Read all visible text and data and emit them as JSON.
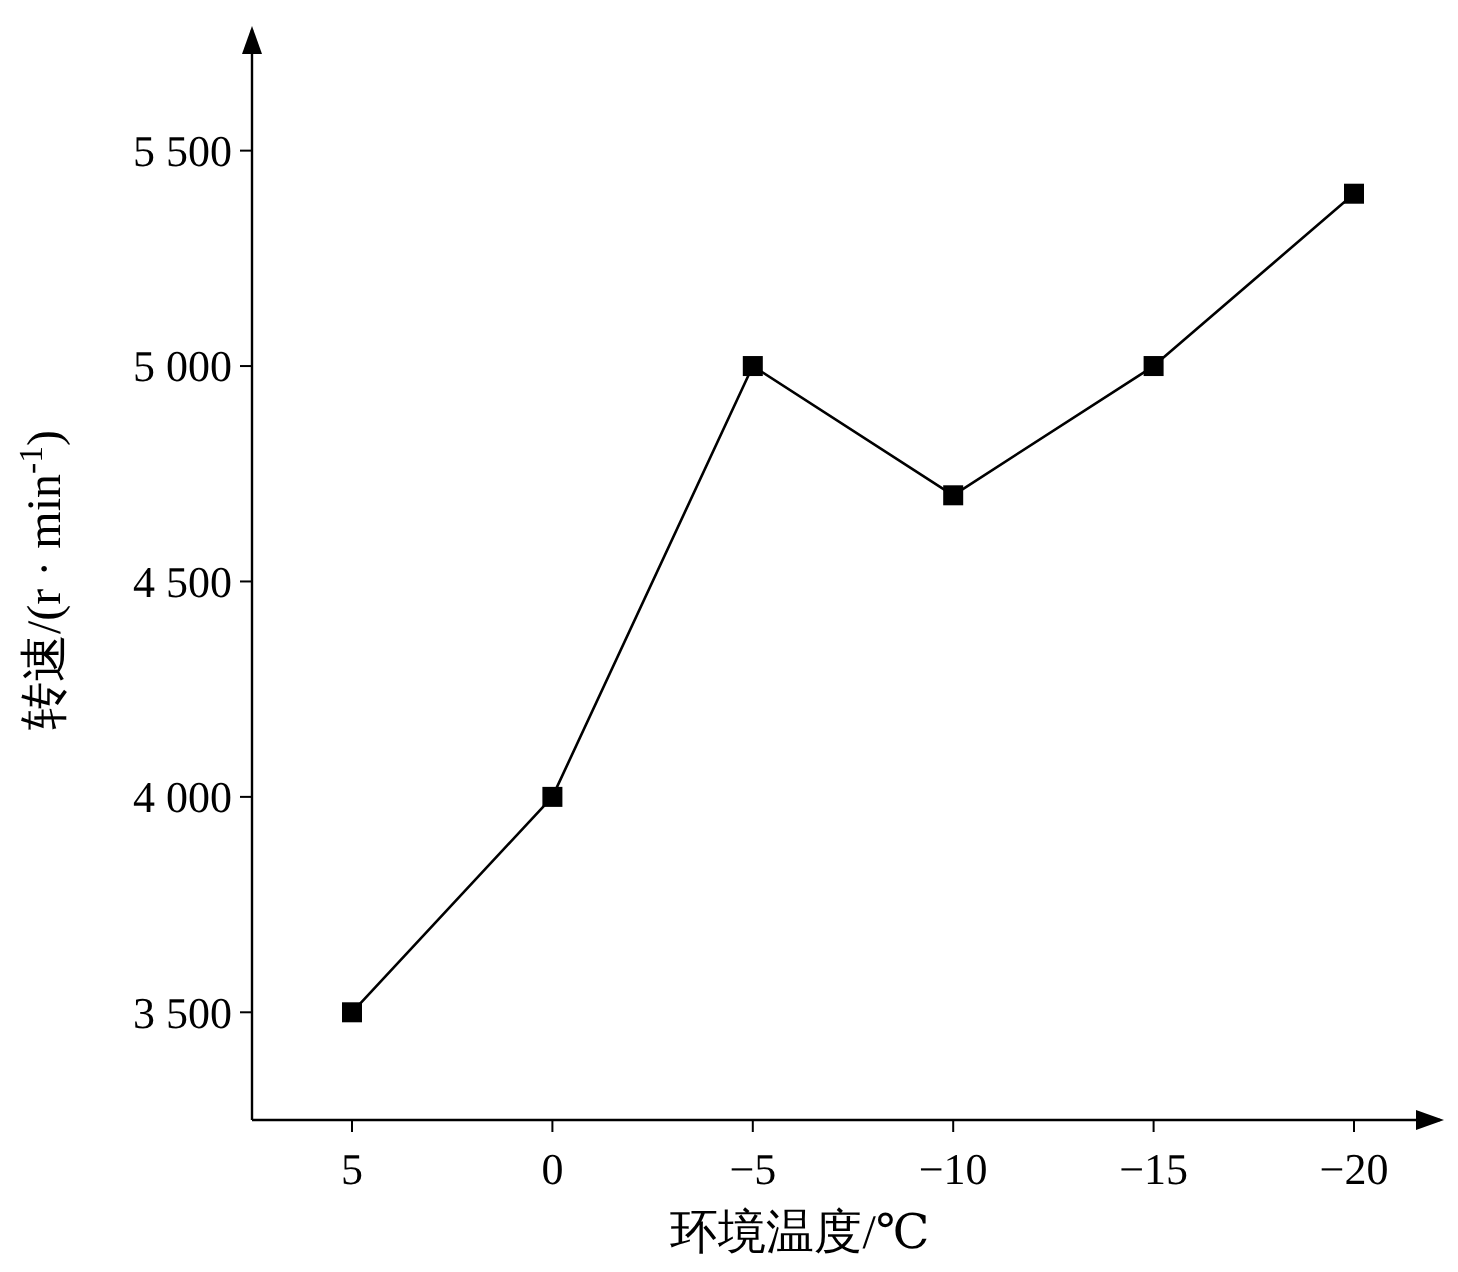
{
  "chart_data": {
    "type": "line",
    "xlabel": "环境温度/℃",
    "ylabel": "转速/(r · min$^{-1}$)",
    "categories": [
      "5",
      "0",
      "−5",
      "−10",
      "−15",
      "−20"
    ],
    "values": [
      3500,
      4000,
      5000,
      4700,
      5000,
      5400
    ],
    "color": "#000000",
    "marker": "square",
    "line_style": "solid",
    "ylim": [
      3250,
      5780
    ],
    "yticks": [
      {
        "value": 3500,
        "label": "3 500"
      },
      {
        "value": 4000,
        "label": "4 000"
      },
      {
        "value": 4500,
        "label": "4 500"
      },
      {
        "value": 5000,
        "label": "5 000"
      },
      {
        "value": 5500,
        "label": "5 500"
      }
    ]
  }
}
